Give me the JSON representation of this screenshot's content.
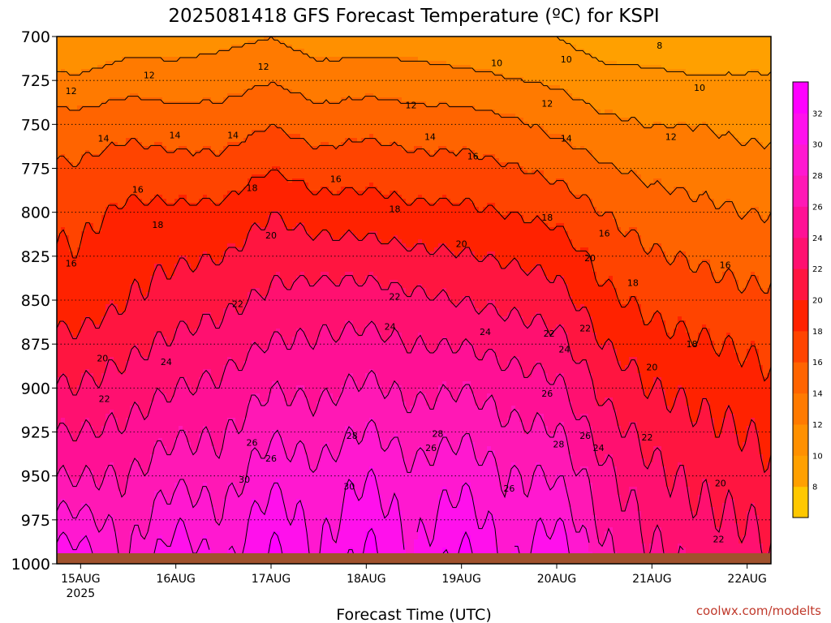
{
  "chart_data": {
    "type": "heatmap",
    "title": "2025081418 GFS Forecast Temperature (ºC) for KSPI",
    "xlabel": "Forecast Time (UTC)",
    "ylabel": "",
    "credit": "coolwx.com/modelts",
    "x_ticks": [
      {
        "label": "15AUG",
        "sublabel": "2025",
        "day": 0
      },
      {
        "label": "16AUG",
        "sublabel": "",
        "day": 1
      },
      {
        "label": "17AUG",
        "sublabel": "",
        "day": 2
      },
      {
        "label": "18AUG",
        "sublabel": "",
        "day": 3
      },
      {
        "label": "19AUG",
        "sublabel": "",
        "day": 4
      },
      {
        "label": "20AUG",
        "sublabel": "",
        "day": 5
      },
      {
        "label": "21AUG",
        "sublabel": "",
        "day": 6
      },
      {
        "label": "22AUG",
        "sublabel": "",
        "day": 7
      }
    ],
    "xlim_days": [
      -0.25,
      7.25
    ],
    "y_ticks": [
      700,
      725,
      750,
      775,
      800,
      825,
      850,
      875,
      900,
      925,
      950,
      975,
      1000
    ],
    "ylim_hpa": [
      700,
      1000
    ],
    "grid": true,
    "colorbar": {
      "placement": "right",
      "ticks": [
        8,
        10,
        12,
        14,
        16,
        18,
        20,
        22,
        24,
        26,
        28,
        30,
        32
      ],
      "levels": [
        6,
        8,
        10,
        12,
        14,
        16,
        18,
        20,
        22,
        24,
        26,
        28,
        30,
        32,
        34
      ],
      "colors": [
        "#ffc800",
        "#ffa000",
        "#ff9000",
        "#ff7a00",
        "#ff6400",
        "#ff4400",
        "#ff2200",
        "#ff1540",
        "#ff1070",
        "#ff1095",
        "#ff18b5",
        "#ff18d0",
        "#ff10ec",
        "#ff00ff"
      ]
    },
    "isotherm_profile": [
      {
        "day": 0.0,
        "levels": [
          [
            700,
            10
          ],
          [
            750,
            15
          ],
          [
            800,
            17.5
          ],
          [
            850,
            19
          ],
          [
            900,
            22.2
          ],
          [
            950,
            26
          ],
          [
            1000,
            31.5
          ]
        ]
      },
      {
        "day": 0.5,
        "levels": [
          [
            700,
            11
          ],
          [
            750,
            15.5
          ],
          [
            800,
            18.5
          ],
          [
            850,
            20
          ],
          [
            900,
            23
          ],
          [
            950,
            26
          ],
          [
            1000,
            28
          ]
        ]
      },
      {
        "day": 1.0,
        "levels": [
          [
            700,
            11
          ],
          [
            750,
            15
          ],
          [
            800,
            18.5
          ],
          [
            850,
            21
          ],
          [
            900,
            24
          ],
          [
            950,
            27.5
          ],
          [
            1000,
            32
          ]
        ]
      },
      {
        "day": 1.5,
        "levels": [
          [
            700,
            11.5
          ],
          [
            750,
            15
          ],
          [
            800,
            18.5
          ],
          [
            850,
            21.5
          ],
          [
            900,
            24.5
          ],
          [
            950,
            27
          ],
          [
            1000,
            29.5
          ]
        ]
      },
      {
        "day": 2.0,
        "levels": [
          [
            700,
            12
          ],
          [
            750,
            16
          ],
          [
            800,
            20
          ],
          [
            850,
            22.5
          ],
          [
            900,
            26
          ],
          [
            950,
            29.5
          ],
          [
            1000,
            33
          ]
        ]
      },
      {
        "day": 2.5,
        "levels": [
          [
            700,
            11
          ],
          [
            750,
            15
          ],
          [
            800,
            19
          ],
          [
            850,
            23
          ],
          [
            900,
            25.5
          ],
          [
            950,
            28.5
          ],
          [
            1000,
            30
          ]
        ]
      },
      {
        "day": 3.0,
        "levels": [
          [
            700,
            11
          ],
          [
            750,
            15.5
          ],
          [
            800,
            19
          ],
          [
            850,
            23
          ],
          [
            900,
            26.5
          ],
          [
            950,
            30
          ],
          [
            1000,
            33
          ]
        ]
      },
      {
        "day": 3.5,
        "levels": [
          [
            700,
            11
          ],
          [
            750,
            15
          ],
          [
            800,
            18.5
          ],
          [
            850,
            22.5
          ],
          [
            900,
            25.5
          ],
          [
            950,
            28.5
          ],
          [
            1000,
            30
          ]
        ]
      },
      {
        "day": 4.0,
        "levels": [
          [
            700,
            10.5
          ],
          [
            750,
            15
          ],
          [
            800,
            18.5
          ],
          [
            850,
            22
          ],
          [
            900,
            26
          ],
          [
            950,
            29.5
          ],
          [
            1000,
            33
          ]
        ]
      },
      {
        "day": 4.5,
        "levels": [
          [
            700,
            10
          ],
          [
            750,
            14.5
          ],
          [
            800,
            18
          ],
          [
            850,
            21.5
          ],
          [
            900,
            25
          ],
          [
            950,
            28
          ],
          [
            1000,
            29.5
          ]
        ]
      },
      {
        "day": 5.0,
        "levels": [
          [
            700,
            10
          ],
          [
            750,
            13.5
          ],
          [
            800,
            17.5
          ],
          [
            850,
            21
          ],
          [
            900,
            24.5
          ],
          [
            950,
            28
          ],
          [
            1000,
            32
          ]
        ]
      },
      {
        "day": 5.5,
        "levels": [
          [
            700,
            9
          ],
          [
            750,
            12.5
          ],
          [
            800,
            16
          ],
          [
            850,
            18.5
          ],
          [
            900,
            21.5
          ],
          [
            950,
            24.5
          ],
          [
            1000,
            26.5
          ]
        ]
      },
      {
        "day": 6.0,
        "levels": [
          [
            700,
            9
          ],
          [
            750,
            12
          ],
          [
            800,
            15
          ],
          [
            850,
            17.5
          ],
          [
            900,
            20
          ],
          [
            950,
            22.5
          ],
          [
            1000,
            24.5
          ]
        ]
      },
      {
        "day": 6.5,
        "levels": [
          [
            700,
            8.5
          ],
          [
            750,
            12
          ],
          [
            800,
            14.5
          ],
          [
            850,
            17
          ],
          [
            900,
            19.5
          ],
          [
            950,
            21.5
          ],
          [
            1000,
            23.5
          ]
        ]
      },
      {
        "day": 7.0,
        "levels": [
          [
            700,
            9
          ],
          [
            750,
            11.5
          ],
          [
            800,
            14
          ],
          [
            850,
            16.5
          ],
          [
            900,
            19
          ],
          [
            950,
            21
          ],
          [
            1000,
            23
          ]
        ]
      },
      {
        "day": 7.25,
        "levels": [
          [
            700,
            9
          ],
          [
            750,
            11.5
          ],
          [
            800,
            14
          ],
          [
            850,
            16.5
          ],
          [
            900,
            18.5
          ],
          [
            950,
            20.5
          ],
          [
            1000,
            22.5
          ]
        ]
      }
    ],
    "contour_labels": [
      {
        "value": "8",
        "day": 6.08,
        "p": 705
      },
      {
        "value": "10",
        "day": 4.37,
        "p": 715
      },
      {
        "value": "10",
        "day": 5.1,
        "p": 713
      },
      {
        "value": "10",
        "day": 6.5,
        "p": 729
      },
      {
        "value": "12",
        "day": -0.1,
        "p": 731
      },
      {
        "value": "12",
        "day": 0.72,
        "p": 722
      },
      {
        "value": "12",
        "day": 1.92,
        "p": 717
      },
      {
        "value": "12",
        "day": 3.47,
        "p": 739
      },
      {
        "value": "12",
        "day": 4.9,
        "p": 738
      },
      {
        "value": "12",
        "day": 6.2,
        "p": 757
      },
      {
        "value": "14",
        "day": 0.24,
        "p": 758
      },
      {
        "value": "14",
        "day": 0.99,
        "p": 756
      },
      {
        "value": "14",
        "day": 1.6,
        "p": 756
      },
      {
        "value": "14",
        "day": 3.67,
        "p": 757
      },
      {
        "value": "14",
        "day": 5.1,
        "p": 758
      },
      {
        "value": "16",
        "day": 0.6,
        "p": 787
      },
      {
        "value": "16",
        "day": 2.68,
        "p": 781
      },
      {
        "value": "16",
        "day": 4.12,
        "p": 768
      },
      {
        "value": "16",
        "day": 5.5,
        "p": 812
      },
      {
        "value": "16",
        "day": 6.77,
        "p": 830
      },
      {
        "value": "16",
        "day": -0.1,
        "p": 829
      },
      {
        "value": "18",
        "day": 0.81,
        "p": 807
      },
      {
        "value": "18",
        "day": 1.8,
        "p": 786
      },
      {
        "value": "18",
        "day": 3.3,
        "p": 798
      },
      {
        "value": "18",
        "day": 4.9,
        "p": 803
      },
      {
        "value": "18",
        "day": 6.42,
        "p": 875
      },
      {
        "value": "18",
        "day": 5.8,
        "p": 840
      },
      {
        "value": "20",
        "day": 0.23,
        "p": 883
      },
      {
        "value": "20",
        "day": 2.0,
        "p": 813
      },
      {
        "value": "20",
        "day": 4.0,
        "p": 818
      },
      {
        "value": "20",
        "day": 5.35,
        "p": 826
      },
      {
        "value": "20",
        "day": 6.0,
        "p": 888
      },
      {
        "value": "20",
        "day": 6.72,
        "p": 954
      },
      {
        "value": "22",
        "day": 0.25,
        "p": 906
      },
      {
        "value": "22",
        "day": 1.65,
        "p": 852
      },
      {
        "value": "22",
        "day": 3.3,
        "p": 848
      },
      {
        "value": "22",
        "day": 4.92,
        "p": 869
      },
      {
        "value": "22",
        "day": 5.3,
        "p": 866
      },
      {
        "value": "22",
        "day": 5.95,
        "p": 928
      },
      {
        "value": "22",
        "day": 6.7,
        "p": 986
      },
      {
        "value": "24",
        "day": 0.9,
        "p": 885
      },
      {
        "value": "24",
        "day": 3.25,
        "p": 865
      },
      {
        "value": "24",
        "day": 4.25,
        "p": 868
      },
      {
        "value": "24",
        "day": 5.08,
        "p": 878
      },
      {
        "value": "24",
        "day": 5.44,
        "p": 934
      },
      {
        "value": "26",
        "day": 1.8,
        "p": 931
      },
      {
        "value": "26",
        "day": 2.0,
        "p": 940
      },
      {
        "value": "26",
        "day": 3.68,
        "p": 934
      },
      {
        "value": "26",
        "day": 4.5,
        "p": 957
      },
      {
        "value": "26",
        "day": 4.9,
        "p": 903
      },
      {
        "value": "26",
        "day": 5.3,
        "p": 927
      },
      {
        "value": "28",
        "day": 2.85,
        "p": 927
      },
      {
        "value": "28",
        "day": 3.75,
        "p": 926
      },
      {
        "value": "28",
        "day": 5.02,
        "p": 932
      },
      {
        "value": "30",
        "day": 1.72,
        "p": 952
      },
      {
        "value": "30",
        "day": 2.82,
        "p": 956
      }
    ],
    "surface_pressure_hpa": 994,
    "terrain_color": "#a0522d"
  }
}
